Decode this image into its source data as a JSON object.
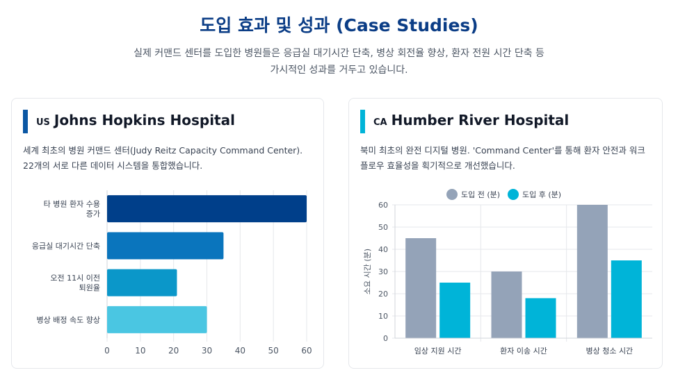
{
  "header": {
    "title": "도입 효과 및 성과 (Case Studies)",
    "subtitle_line1": "실제 커맨드 센터를 도입한 병원들은 응급실 대기시간 단축, 병상 회전율 향상, 환자 전원 시간 단축 등",
    "subtitle_line2": "가시적인 성과를 거두고 있습니다."
  },
  "cards": [
    {
      "country_code": "US",
      "title": "Johns Hopkins Hospital",
      "description": "세계 최초의 병원 커맨드 센터(Judy Reitz Capacity Command Center). 22개의 서로 다른 데이터 시스템을 통합했습니다.",
      "accent_color": "#0b57a4"
    },
    {
      "country_code": "CA",
      "title": "Humber River Hospital",
      "description": "북미 최초의 완전 디지털 병원. 'Command Center'를 통해 환자 안전과 워크플로우 효율성을 획기적으로 개선했습니다.",
      "accent_color": "#00b4d8"
    }
  ],
  "chart_data": [
    {
      "type": "bar",
      "orientation": "horizontal",
      "categories": [
        [
          "타 병원 환자 수용",
          "증가"
        ],
        [
          "응급실 대기시간 단축"
        ],
        [
          "오전 11시 이전",
          "퇴원율"
        ],
        [
          "병상 배정 속도 향상"
        ]
      ],
      "values": [
        60,
        35,
        21,
        30
      ],
      "colors": [
        "#003f8a",
        "#0a75bd",
        "#0b97c9",
        "#4ac6e2"
      ],
      "xlim": [
        0,
        60
      ],
      "xticks": [
        0,
        10,
        20,
        30,
        40,
        50,
        60
      ],
      "grid": true
    },
    {
      "type": "bar",
      "categories": [
        "임상 지원 시간",
        "환자 이송 시간",
        "병상 청소 시간"
      ],
      "series": [
        {
          "name": "도입 전 (분)",
          "values": [
            45,
            30,
            60
          ],
          "color": "#94a3b8"
        },
        {
          "name": "도입 후 (분)",
          "values": [
            25,
            18,
            35
          ],
          "color": "#00b4d8"
        }
      ],
      "ylabel": "소요 시간 (분)",
      "ylim": [
        0,
        60
      ],
      "yticks": [
        0,
        10,
        20,
        30,
        40,
        50,
        60
      ],
      "legend": "top",
      "grid": true
    }
  ]
}
